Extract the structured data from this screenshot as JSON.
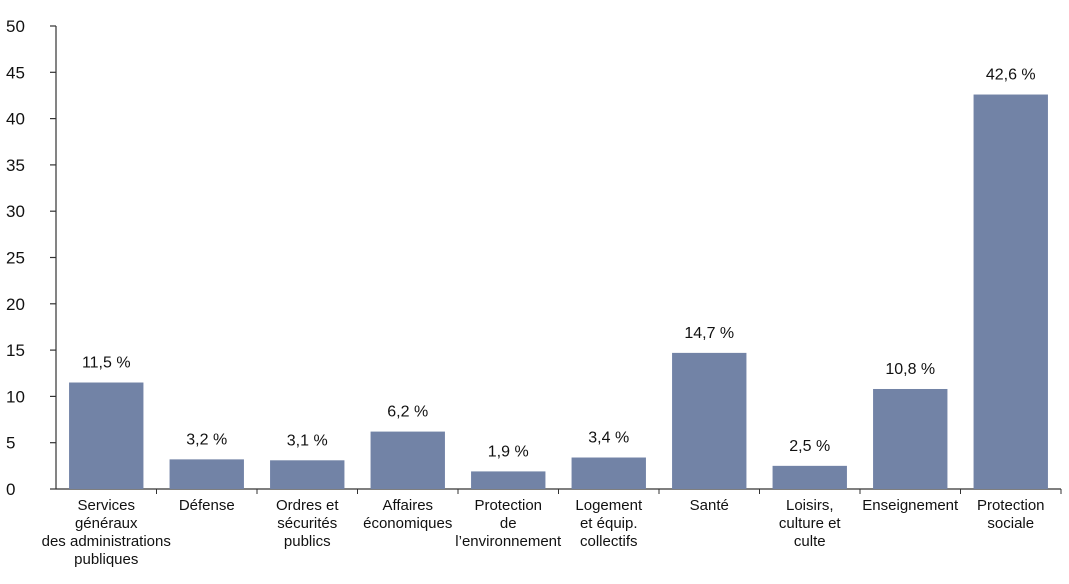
{
  "chart_data": {
    "type": "bar",
    "categories": [
      [
        "Services",
        "généraux",
        "des administrations",
        "publiques"
      ],
      [
        "Défense"
      ],
      [
        "Ordres et",
        "sécurités",
        "publics"
      ],
      [
        "Affaires",
        "économiques"
      ],
      [
        "Protection",
        "de",
        "l’environnement"
      ],
      [
        "Logement",
        "et équip.",
        "collectifs"
      ],
      [
        "Santé"
      ],
      [
        "Loisirs,",
        "culture et",
        "culte"
      ],
      [
        "Enseignement"
      ],
      [
        "Protection",
        "sociale"
      ]
    ],
    "values": [
      11.5,
      3.2,
      3.1,
      6.2,
      1.9,
      3.4,
      14.7,
      2.5,
      10.8,
      42.6
    ],
    "data_labels": [
      "11,5 %",
      "3,2 %",
      "3,1 %",
      "6,2 %",
      "1,9 %",
      "3,4 %",
      "14,7 %",
      "2,5 %",
      "10,8 %",
      "42,6 %"
    ],
    "y_ticks": [
      "0",
      "5",
      "10",
      "15",
      "20",
      "25",
      "30",
      "35",
      "40",
      "45",
      "50"
    ],
    "ylim": [
      0,
      50
    ],
    "grid": false,
    "bar_color": "#7283a6",
    "axis_color": "#333333"
  }
}
